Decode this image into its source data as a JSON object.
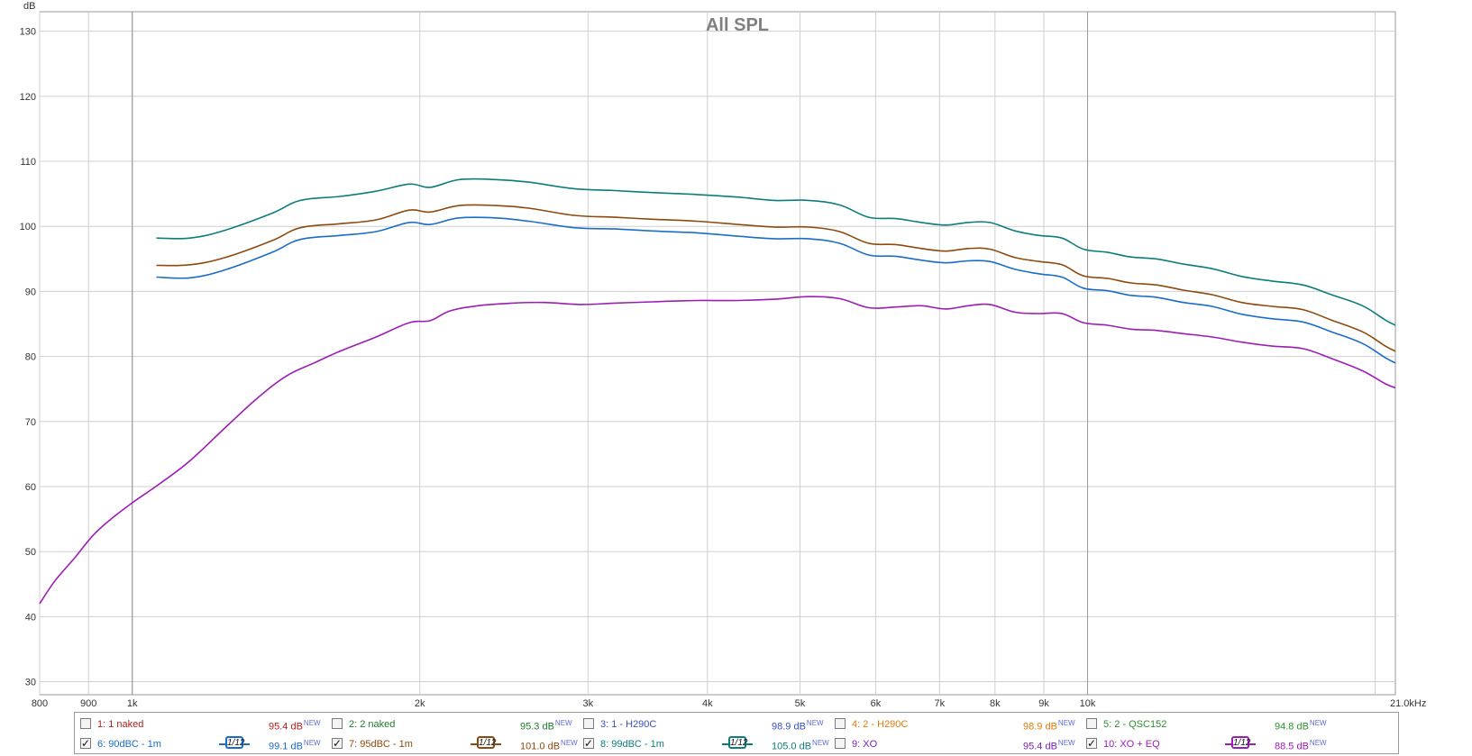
{
  "chart_data": {
    "type": "line",
    "title": "All SPL",
    "ylabel": "dB",
    "x_unit": "kHz",
    "xscale": "log",
    "xlim": [
      800,
      21000
    ],
    "ylim": [
      28,
      133
    ],
    "grid": true,
    "xticks": [
      {
        "v": 800,
        "label": "800"
      },
      {
        "v": 900,
        "label": "900"
      },
      {
        "v": 1000,
        "label": "1k"
      },
      {
        "v": 2000,
        "label": "2k"
      },
      {
        "v": 3000,
        "label": "3k"
      },
      {
        "v": 4000,
        "label": "4k"
      },
      {
        "v": 5000,
        "label": "5k"
      },
      {
        "v": 6000,
        "label": "6k"
      },
      {
        "v": 7000,
        "label": "7k"
      },
      {
        "v": 8000,
        "label": "8k"
      },
      {
        "v": 9000,
        "label": "9k"
      },
      {
        "v": 10000,
        "label": "10k"
      },
      {
        "v": 21000,
        "label": "21.0kHz"
      }
    ],
    "yticks": [
      30,
      40,
      50,
      60,
      70,
      80,
      90,
      100,
      110,
      120,
      130
    ],
    "series": [
      {
        "name": "8: 99dBC - 1m",
        "color": "#0e7c7b",
        "points": [
          [
            1060,
            98.2
          ],
          [
            1150,
            98.2
          ],
          [
            1250,
            99.4
          ],
          [
            1400,
            102.0
          ],
          [
            1500,
            104.0
          ],
          [
            1650,
            104.6
          ],
          [
            1800,
            105.4
          ],
          [
            1950,
            106.5
          ],
          [
            2050,
            106.0
          ],
          [
            2200,
            107.2
          ],
          [
            2400,
            107.2
          ],
          [
            2600,
            106.8
          ],
          [
            2900,
            105.8
          ],
          [
            3200,
            105.5
          ],
          [
            3500,
            105.2
          ],
          [
            3900,
            104.9
          ],
          [
            4300,
            104.5
          ],
          [
            4700,
            104.0
          ],
          [
            5100,
            104.0
          ],
          [
            5500,
            103.3
          ],
          [
            5900,
            101.4
          ],
          [
            6300,
            101.2
          ],
          [
            6700,
            100.6
          ],
          [
            7100,
            100.2
          ],
          [
            7500,
            100.6
          ],
          [
            7900,
            100.6
          ],
          [
            8400,
            99.3
          ],
          [
            8900,
            98.6
          ],
          [
            9400,
            98.2
          ],
          [
            9900,
            96.5
          ],
          [
            10500,
            96.0
          ],
          [
            11100,
            95.3
          ],
          [
            11800,
            95.0
          ],
          [
            12600,
            94.2
          ],
          [
            13500,
            93.5
          ],
          [
            14500,
            92.3
          ],
          [
            15600,
            91.6
          ],
          [
            16800,
            91.0
          ],
          [
            18000,
            89.5
          ],
          [
            19400,
            87.8
          ],
          [
            20500,
            85.6
          ],
          [
            21000,
            84.8
          ]
        ]
      },
      {
        "name": "7: 95dBC - 1m",
        "color": "#8b4a10",
        "points": [
          [
            1060,
            94.0
          ],
          [
            1150,
            94.1
          ],
          [
            1250,
            95.2
          ],
          [
            1400,
            97.8
          ],
          [
            1500,
            99.8
          ],
          [
            1650,
            100.4
          ],
          [
            1800,
            101.0
          ],
          [
            1950,
            102.5
          ],
          [
            2050,
            102.2
          ],
          [
            2200,
            103.2
          ],
          [
            2400,
            103.2
          ],
          [
            2600,
            102.8
          ],
          [
            2900,
            101.7
          ],
          [
            3200,
            101.4
          ],
          [
            3500,
            101.1
          ],
          [
            3900,
            100.8
          ],
          [
            4300,
            100.3
          ],
          [
            4700,
            99.9
          ],
          [
            5100,
            99.9
          ],
          [
            5500,
            99.2
          ],
          [
            5900,
            97.4
          ],
          [
            6300,
            97.2
          ],
          [
            6700,
            96.6
          ],
          [
            7100,
            96.2
          ],
          [
            7500,
            96.6
          ],
          [
            7900,
            96.5
          ],
          [
            8400,
            95.2
          ],
          [
            8900,
            94.6
          ],
          [
            9400,
            94.1
          ],
          [
            9900,
            92.4
          ],
          [
            10500,
            92.0
          ],
          [
            11100,
            91.3
          ],
          [
            11800,
            91.0
          ],
          [
            12600,
            90.2
          ],
          [
            13500,
            89.5
          ],
          [
            14500,
            88.3
          ],
          [
            15600,
            87.7
          ],
          [
            16800,
            87.2
          ],
          [
            18000,
            85.6
          ],
          [
            19400,
            83.8
          ],
          [
            20500,
            81.6
          ],
          [
            21000,
            80.8
          ]
        ]
      },
      {
        "name": "6: 90dBC - 1m",
        "color": "#1c6cc6",
        "points": [
          [
            1060,
            92.2
          ],
          [
            1150,
            92.1
          ],
          [
            1250,
            93.3
          ],
          [
            1400,
            96.0
          ],
          [
            1500,
            98.0
          ],
          [
            1650,
            98.6
          ],
          [
            1800,
            99.2
          ],
          [
            1950,
            100.6
          ],
          [
            2050,
            100.3
          ],
          [
            2200,
            101.3
          ],
          [
            2400,
            101.3
          ],
          [
            2600,
            100.8
          ],
          [
            2900,
            99.8
          ],
          [
            3200,
            99.6
          ],
          [
            3500,
            99.3
          ],
          [
            3900,
            99.0
          ],
          [
            4300,
            98.5
          ],
          [
            4700,
            98.1
          ],
          [
            5100,
            98.1
          ],
          [
            5500,
            97.4
          ],
          [
            5900,
            95.6
          ],
          [
            6300,
            95.4
          ],
          [
            6700,
            94.8
          ],
          [
            7100,
            94.4
          ],
          [
            7500,
            94.7
          ],
          [
            7900,
            94.6
          ],
          [
            8400,
            93.4
          ],
          [
            8900,
            92.7
          ],
          [
            9400,
            92.2
          ],
          [
            9900,
            90.5
          ],
          [
            10500,
            90.1
          ],
          [
            11100,
            89.4
          ],
          [
            11800,
            89.1
          ],
          [
            12600,
            88.3
          ],
          [
            13500,
            87.7
          ],
          [
            14500,
            86.5
          ],
          [
            15600,
            85.8
          ],
          [
            16800,
            85.3
          ],
          [
            18000,
            83.8
          ],
          [
            19400,
            82.0
          ],
          [
            20500,
            79.8
          ],
          [
            21000,
            79.0
          ]
        ]
      },
      {
        "name": "10: XO + EQ",
        "color": "#9b1db4",
        "points": [
          [
            800,
            42.0
          ],
          [
            830,
            45.5
          ],
          [
            870,
            49.0
          ],
          [
            910,
            52.5
          ],
          [
            950,
            55.0
          ],
          [
            1000,
            57.5
          ],
          [
            1070,
            60.5
          ],
          [
            1150,
            64.0
          ],
          [
            1250,
            69.0
          ],
          [
            1350,
            73.5
          ],
          [
            1450,
            77.0
          ],
          [
            1550,
            79.0
          ],
          [
            1650,
            80.8
          ],
          [
            1800,
            83.0
          ],
          [
            1950,
            85.2
          ],
          [
            2050,
            85.5
          ],
          [
            2150,
            87.0
          ],
          [
            2300,
            87.8
          ],
          [
            2500,
            88.2
          ],
          [
            2700,
            88.3
          ],
          [
            2950,
            88.0
          ],
          [
            3200,
            88.2
          ],
          [
            3500,
            88.4
          ],
          [
            3900,
            88.6
          ],
          [
            4300,
            88.6
          ],
          [
            4700,
            88.8
          ],
          [
            5100,
            89.2
          ],
          [
            5500,
            88.9
          ],
          [
            5900,
            87.5
          ],
          [
            6300,
            87.6
          ],
          [
            6700,
            87.8
          ],
          [
            7100,
            87.3
          ],
          [
            7500,
            87.8
          ],
          [
            7900,
            88.0
          ],
          [
            8400,
            86.8
          ],
          [
            8900,
            86.6
          ],
          [
            9400,
            86.6
          ],
          [
            9900,
            85.2
          ],
          [
            10500,
            84.8
          ],
          [
            11100,
            84.2
          ],
          [
            11800,
            84.0
          ],
          [
            12600,
            83.5
          ],
          [
            13500,
            83.0
          ],
          [
            14500,
            82.2
          ],
          [
            15600,
            81.6
          ],
          [
            16800,
            81.2
          ],
          [
            18000,
            79.7
          ],
          [
            19400,
            77.8
          ],
          [
            20500,
            75.8
          ],
          [
            21000,
            75.2
          ]
        ]
      }
    ]
  },
  "legend": {
    "row1": [
      {
        "label": "1: 1 naked",
        "value": "95.4 dB",
        "badge": "NEW",
        "checked": "",
        "color": "#b02020"
      },
      {
        "label": "2: 2 naked",
        "value": "95.3 dB",
        "badge": "NEW",
        "checked": "",
        "color": "#1f7a2c"
      },
      {
        "label": "3: 1 - H290C",
        "value": "98.9 dB",
        "badge": "NEW",
        "checked": "",
        "color": "#3a4fbf"
      },
      {
        "label": "4: 2 - H290C",
        "value": "98.9 dB",
        "badge": "NEW",
        "checked": "",
        "color": "#e07a10"
      },
      {
        "label": "5: 2 - QSC152",
        "value": "94.8 dB",
        "badge": "NEW",
        "checked": "",
        "color": "#2e8f2e"
      }
    ],
    "row2": [
      {
        "label": "6: 90dBC - 1m",
        "value": "99.1 dB",
        "badge": "NEW",
        "checked": "✓",
        "smoothing": "1/12",
        "color": "#1c6cc6"
      },
      {
        "label": "7: 95dBC - 1m",
        "value": "101.0 dB",
        "badge": "NEW",
        "checked": "✓",
        "smoothing": "1/12",
        "color": "#8b4a10"
      },
      {
        "label": "8: 99dBC - 1m",
        "value": "105.0 dB",
        "badge": "NEW",
        "checked": "✓",
        "smoothing": "1/12",
        "color": "#0e7c7b"
      },
      {
        "label": "9: XO",
        "value": "95.4 dB",
        "badge": "NEW",
        "checked": "",
        "color": "#7a22b8"
      },
      {
        "label": "10: XO + EQ",
        "value": "88.5 dB",
        "badge": "NEW",
        "checked": "✓",
        "smoothing": "1/12",
        "color": "#9b1db4"
      }
    ]
  }
}
